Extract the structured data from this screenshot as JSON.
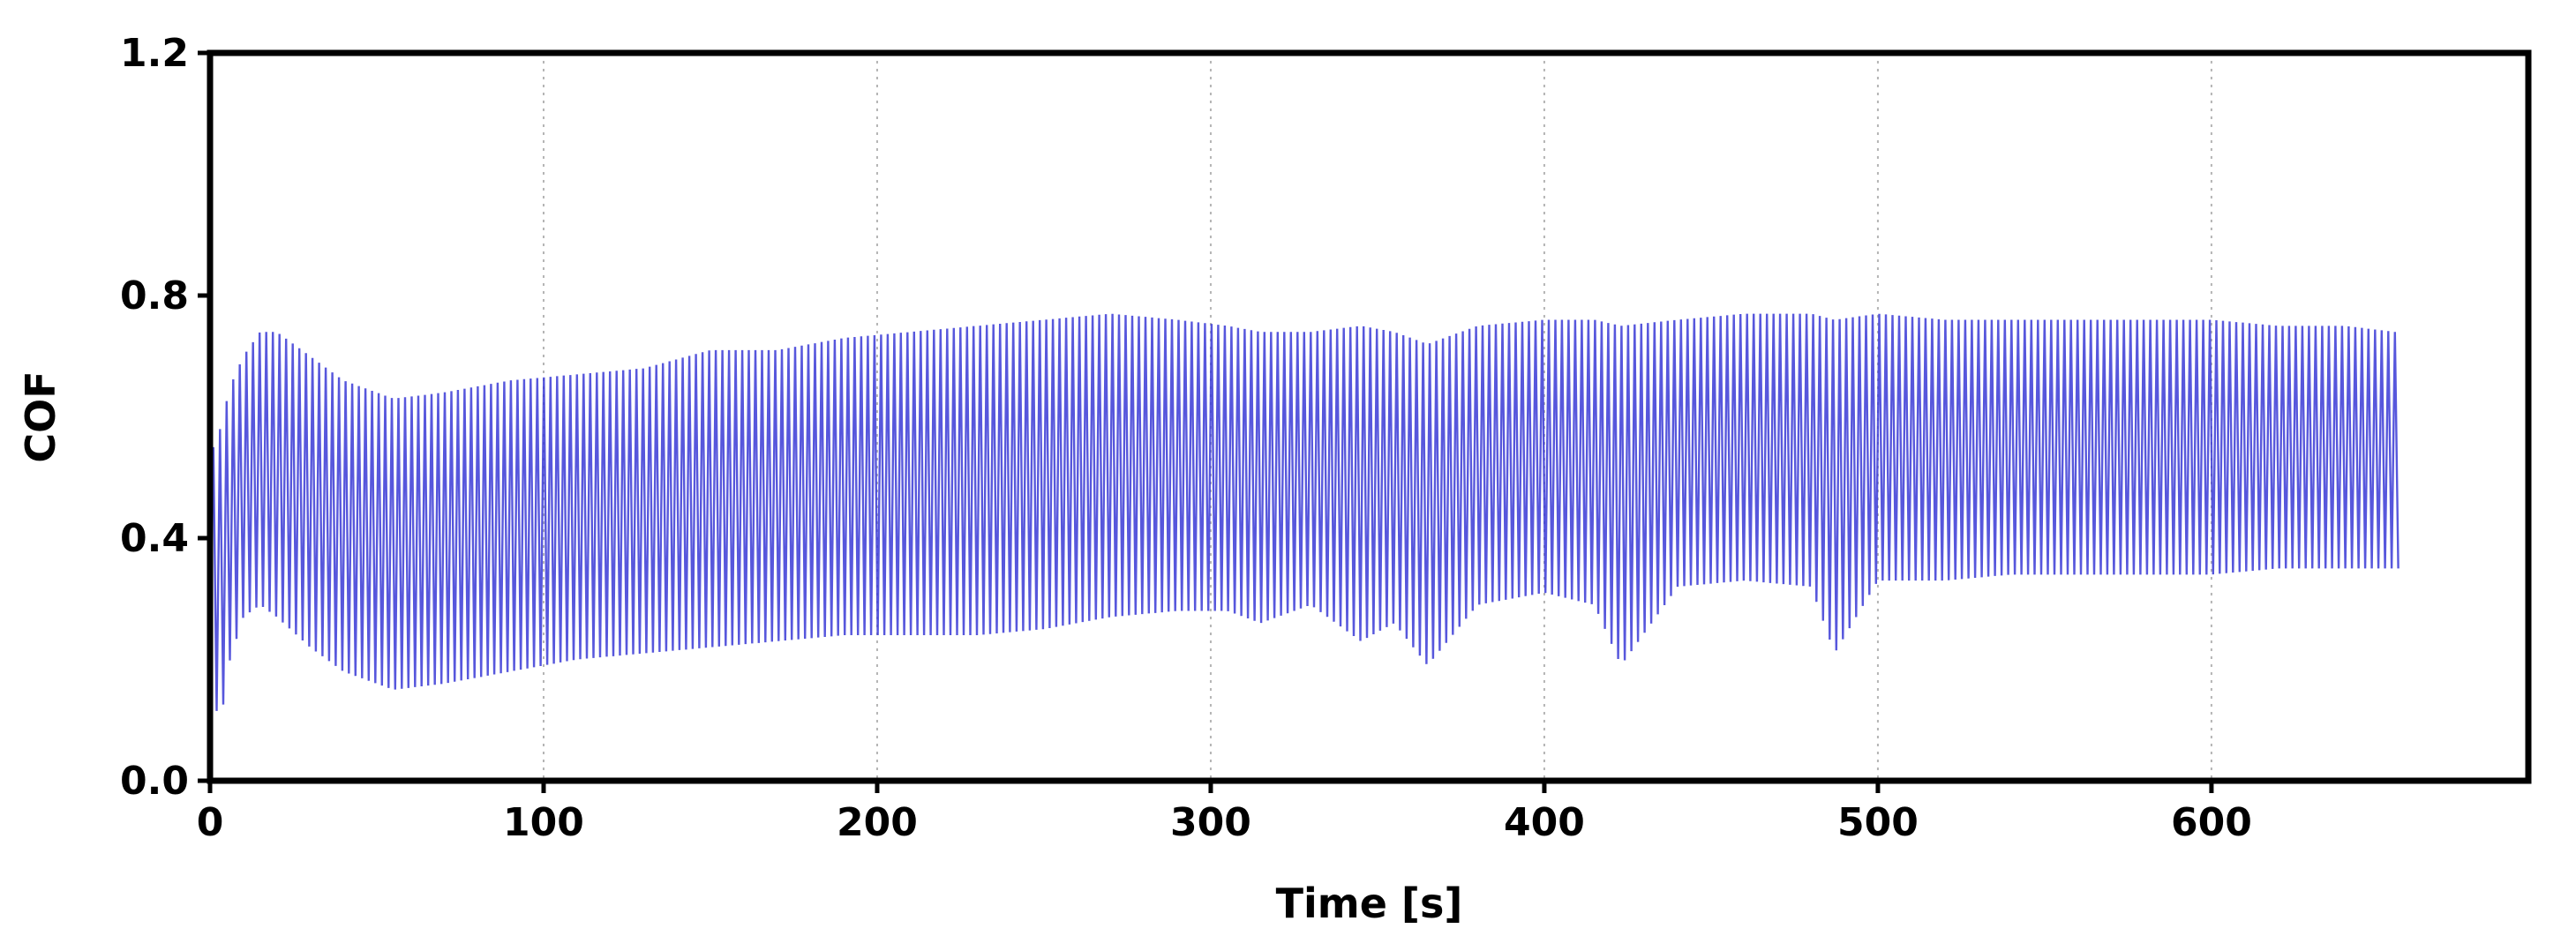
{
  "chart_data": {
    "type": "line",
    "xlabel": "Time [s]",
    "ylabel": "COF",
    "xlim": [
      0,
      695
    ],
    "ylim": [
      0,
      1.2
    ],
    "x_ticks": [
      0,
      100,
      200,
      300,
      400,
      500,
      600
    ],
    "x_tick_labels": [
      "0",
      "100",
      "200",
      "300",
      "400",
      "500",
      "600"
    ],
    "y_ticks": [
      0.0,
      0.4,
      0.8,
      1.2
    ],
    "y_tick_labels": [
      "0.0",
      "0.4",
      "0.8",
      "1.2"
    ],
    "grid": "vertical-dotted",
    "series_color": "#3a3ad6",
    "series": [
      {
        "x": [
          1,
          3,
          6,
          10,
          15,
          20,
          30,
          40,
          55,
          70,
          90,
          110,
          130,
          150,
          170,
          190,
          210,
          230,
          250,
          270,
          290,
          305,
          315,
          330,
          345,
          355,
          365,
          380,
          400,
          415,
          423,
          440,
          460,
          480,
          487,
          500,
          520,
          540,
          560,
          580,
          600,
          620,
          640,
          655
        ],
        "upper": [
          0.55,
          0.58,
          0.65,
          0.7,
          0.74,
          0.74,
          0.7,
          0.66,
          0.63,
          0.64,
          0.66,
          0.67,
          0.68,
          0.71,
          0.71,
          0.73,
          0.74,
          0.75,
          0.76,
          0.77,
          0.76,
          0.75,
          0.74,
          0.74,
          0.75,
          0.74,
          0.72,
          0.75,
          0.76,
          0.76,
          0.75,
          0.76,
          0.77,
          0.77,
          0.76,
          0.77,
          0.76,
          0.76,
          0.76,
          0.76,
          0.76,
          0.75,
          0.75,
          0.74
        ],
        "lower": [
          0.14,
          0.09,
          0.2,
          0.27,
          0.29,
          0.27,
          0.22,
          0.18,
          0.15,
          0.16,
          0.18,
          0.2,
          0.21,
          0.22,
          0.23,
          0.24,
          0.24,
          0.24,
          0.25,
          0.27,
          0.28,
          0.28,
          0.26,
          0.29,
          0.23,
          0.26,
          0.19,
          0.29,
          0.31,
          0.29,
          0.19,
          0.32,
          0.33,
          0.32,
          0.21,
          0.33,
          0.33,
          0.34,
          0.34,
          0.34,
          0.34,
          0.35,
          0.35,
          0.35
        ]
      }
    ]
  }
}
